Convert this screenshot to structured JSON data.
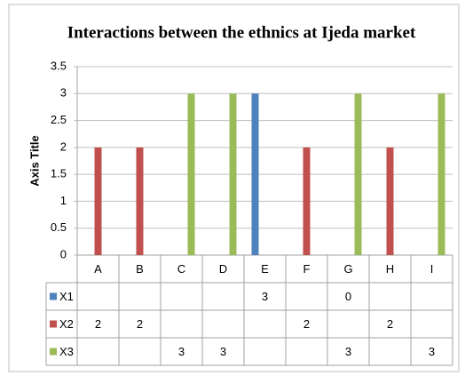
{
  "chart_data": {
    "type": "bar",
    "title": "Interactions between the ethnics at Ijeda market",
    "y_axis_label": "Axis Title",
    "categories": [
      "A",
      "B",
      "C",
      "D",
      "E",
      "F",
      "G",
      "H",
      "I"
    ],
    "series": [
      {
        "name": "X1",
        "color": "#4f81bd",
        "values": [
          null,
          null,
          null,
          null,
          3,
          null,
          0,
          null,
          null
        ]
      },
      {
        "name": "X2",
        "color": "#c0504d",
        "values": [
          2,
          2,
          null,
          null,
          null,
          2,
          null,
          2,
          null
        ]
      },
      {
        "name": "X3",
        "color": "#9bbb59",
        "values": [
          null,
          null,
          3,
          3,
          null,
          null,
          3,
          null,
          3
        ]
      }
    ],
    "ylim": [
      0,
      3.5
    ],
    "yticks": [
      0,
      0.5,
      1,
      1.5,
      2,
      2.5,
      3,
      3.5
    ],
    "grid": true,
    "data_table": true
  }
}
